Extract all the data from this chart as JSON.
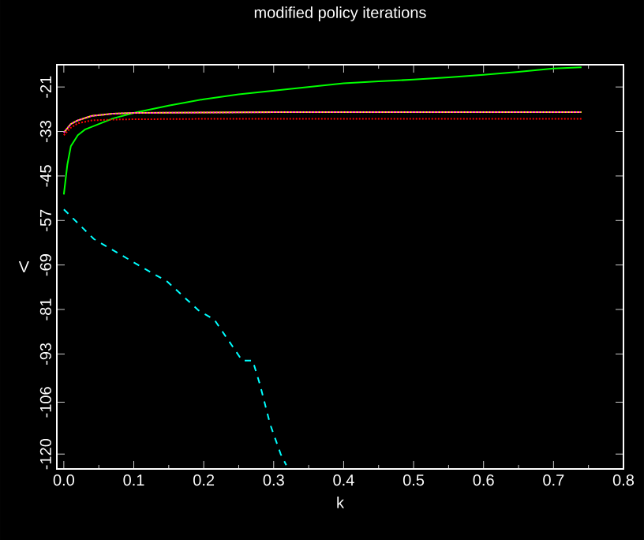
{
  "chart_data": {
    "type": "line",
    "title": "modified policy iterations",
    "xlabel": "k",
    "ylabel": "V",
    "xlim": [
      -0.01,
      0.8
    ],
    "ylim": [
      -124,
      -15
    ],
    "xticks": [
      {
        "value": 0,
        "label": "0.0"
      },
      {
        "value": 0.1,
        "label": "0.1"
      },
      {
        "value": 0.2,
        "label": "0.2"
      },
      {
        "value": 0.3,
        "label": "0.3"
      },
      {
        "value": 0.4,
        "label": "0.4"
      },
      {
        "value": 0.5,
        "label": "0.5"
      },
      {
        "value": 0.6,
        "label": "0.6"
      },
      {
        "value": 0.7,
        "label": "0.7"
      },
      {
        "value": 0.8,
        "label": "0.8"
      }
    ],
    "yticks": [
      -120,
      -106,
      -93,
      -81,
      -69,
      -57,
      -45,
      -33,
      -21
    ],
    "grid": false,
    "series": [
      {
        "color": "#00ff00",
        "line_style": "solid",
        "x": [
          0,
          0.005,
          0.01,
          0.02,
          0.03,
          0.05,
          0.07,
          0.1,
          0.15,
          0.2,
          0.25,
          0.3,
          0.35,
          0.4,
          0.45,
          0.5,
          0.55,
          0.6,
          0.65,
          0.7,
          0.74
        ],
        "values": [
          -50,
          -42,
          -37,
          -34,
          -32.5,
          -31,
          -29.5,
          -28,
          -26,
          -24.3,
          -23,
          -22,
          -21,
          -20,
          -19.5,
          -19,
          -18.4,
          -17.7,
          -16.9,
          -16,
          -15.7
        ]
      },
      {
        "color": "#ffff00",
        "line_style": "solid",
        "x": [
          0,
          0.01,
          0.02,
          0.04,
          0.07,
          0.1,
          0.2,
          0.3,
          0.4,
          0.5,
          0.6,
          0.7,
          0.74
        ],
        "values": [
          -33.3,
          -31,
          -30,
          -28.8,
          -28.2,
          -28,
          -27.9,
          -27.8,
          -27.8,
          -27.8,
          -27.8,
          -27.8,
          -27.8
        ]
      },
      {
        "color": "#ff00ff",
        "line_style": "dotted",
        "x": [
          0,
          0.01,
          0.02,
          0.04,
          0.07,
          0.1,
          0.2,
          0.3,
          0.4,
          0.5,
          0.6,
          0.7,
          0.74
        ],
        "values": [
          -33.3,
          -31,
          -30,
          -28.8,
          -28.2,
          -28,
          -27.9,
          -27.8,
          -27.8,
          -27.8,
          -27.8,
          -27.8,
          -27.8
        ]
      },
      {
        "color": "#ff0000",
        "line_style": "dotted",
        "x": [
          0,
          0.01,
          0.02,
          0.04,
          0.07,
          0.1,
          0.2,
          0.3,
          0.4,
          0.5,
          0.6,
          0.7,
          0.74
        ],
        "values": [
          -34,
          -32,
          -30.8,
          -30,
          -29.8,
          -29.7,
          -29.6,
          -29.6,
          -29.6,
          -29.6,
          -29.6,
          -29.6,
          -29.6
        ]
      },
      {
        "color": "#00ffff",
        "line_style": "dashed",
        "x": [
          0,
          0.043,
          0.11,
          0.148,
          0.193,
          0.215,
          0.255,
          0.27,
          0.28,
          0.295,
          0.31,
          0.318
        ],
        "values": [
          -54,
          -62,
          -69.4,
          -73.5,
          -81.3,
          -83.7,
          -94.8,
          -94.8,
          -101,
          -112,
          -120,
          -123
        ]
      }
    ]
  }
}
